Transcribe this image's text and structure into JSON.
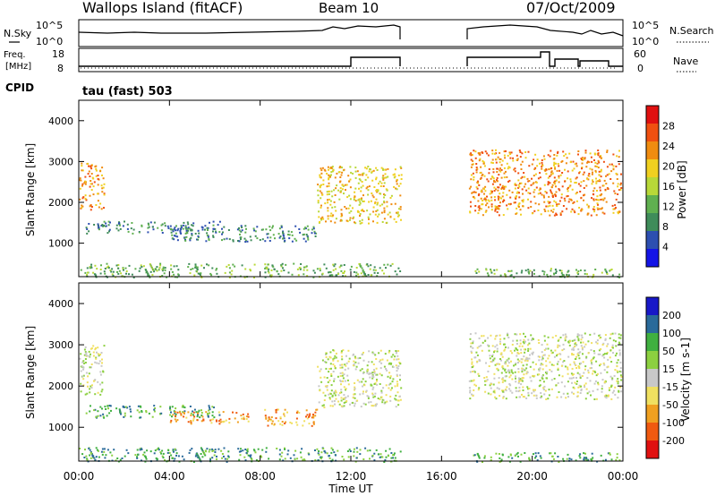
{
  "header": {
    "site": "Wallops Island (fitACF)",
    "beam": "Beam 10",
    "date": "07/Oct/2009"
  },
  "top_panels": {
    "noise_left": "N.Sky",
    "noise_right": "N.Search",
    "noise_ticks_left": [
      "10^5",
      "10^0"
    ],
    "noise_ticks_right": [
      "10^5",
      "10^0"
    ],
    "freq_label": "Freq.",
    "freq_unit": "[MHz]",
    "freq_ticks": [
      "18",
      "8"
    ],
    "nave_label": "Nave",
    "nave_ticks": [
      "60",
      "0"
    ],
    "cpid_label": "CPID",
    "cpid_value": "tau (fast) 503"
  },
  "colors": {
    "power": [
      "#1414e6",
      "#2d4fb0",
      "#3f8c5a",
      "#60b050",
      "#b8d838",
      "#f0d020",
      "#f08c10",
      "#f05010",
      "#e01010"
    ],
    "velocity": [
      "#e01010",
      "#f05a10",
      "#f0a020",
      "#f0e060",
      "#c8c8c8",
      "#8cd040",
      "#40b040",
      "#2a6a9a",
      "#1818c8"
    ]
  },
  "chart_data": [
    {
      "type": "heatmap",
      "title": "Power",
      "ylabel": "Slant Range [km]",
      "xlabel": "Time UT",
      "x_ticks": [
        "00:00",
        "04:00",
        "08:00",
        "12:00",
        "16:00",
        "20:00",
        "00:00"
      ],
      "xlim_hours": [
        0,
        24
      ],
      "ylim_km": [
        180,
        4500
      ],
      "y_ticks": [
        1000,
        2000,
        3000,
        4000
      ],
      "colorbar_label": "Power [dB]",
      "colorbar_ticks": [
        "28",
        "24",
        "20",
        "16",
        "12",
        "8",
        "4"
      ],
      "scatter_regions": [
        {
          "t": [
            0.0,
            1.1
          ],
          "r": [
            1800,
            3000
          ],
          "band": 6
        },
        {
          "t": [
            0.3,
            6.2
          ],
          "r": [
            1250,
            1550
          ],
          "band": 2
        },
        {
          "t": [
            4.0,
            10.5
          ],
          "r": [
            1050,
            1450
          ],
          "band": 2
        },
        {
          "t": [
            10.5,
            14.2
          ],
          "r": [
            1500,
            2900
          ],
          "band": 5
        },
        {
          "t": [
            17.2,
            23.9
          ],
          "r": [
            1700,
            3300
          ],
          "band": 6
        },
        {
          "t": [
            0.0,
            14.2
          ],
          "r": [
            180,
            520
          ],
          "band": 3
        },
        {
          "t": [
            17.2,
            23.9
          ],
          "r": [
            180,
            400
          ],
          "band": 3
        }
      ]
    },
    {
      "type": "heatmap",
      "title": "Velocity",
      "ylabel": "Slant Range [km]",
      "xlabel": "Time UT",
      "x_ticks": [
        "00:00",
        "04:00",
        "08:00",
        "12:00",
        "16:00",
        "20:00",
        "00:00"
      ],
      "xlim_hours": [
        0,
        24
      ],
      "ylim_km": [
        180,
        4500
      ],
      "y_ticks": [
        1000,
        2000,
        3000,
        4000
      ],
      "colorbar_label": "Velocity [m s-1]",
      "colorbar_ticks": [
        "200",
        "100",
        "50",
        "15",
        "-15",
        "-50",
        "-100",
        "-200"
      ],
      "scatter_regions": [
        {
          "t": [
            0.0,
            1.1
          ],
          "r": [
            1800,
            3000
          ],
          "band": 4
        },
        {
          "t": [
            0.3,
            6.2
          ],
          "r": [
            1250,
            1550
          ],
          "band": 6
        },
        {
          "t": [
            4.0,
            7.5
          ],
          "r": [
            1100,
            1400
          ],
          "band": 2
        },
        {
          "t": [
            8.0,
            10.5
          ],
          "r": [
            1050,
            1450
          ],
          "band": 2
        },
        {
          "t": [
            10.5,
            14.2
          ],
          "r": [
            1500,
            2900
          ],
          "band": 4
        },
        {
          "t": [
            17.2,
            23.9
          ],
          "r": [
            1700,
            3300
          ],
          "band": 4
        },
        {
          "t": [
            0.0,
            14.2
          ],
          "r": [
            180,
            520
          ],
          "band": 6
        },
        {
          "t": [
            17.2,
            23.9
          ],
          "r": [
            180,
            400
          ],
          "band": 6
        }
      ]
    }
  ]
}
